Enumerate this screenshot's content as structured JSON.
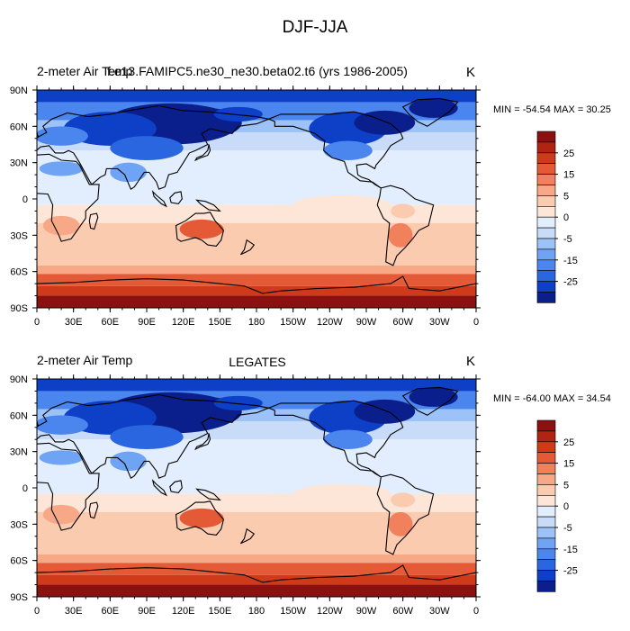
{
  "figure": {
    "title": "DJF-JJA"
  },
  "colors": {
    "levels": [
      "#0a1f8c",
      "#0d3fc7",
      "#2a66e0",
      "#4a86ee",
      "#6fa3f4",
      "#9dc2f8",
      "#c8dcfa",
      "#e2eefd",
      "#fde6d8",
      "#fbcbb0",
      "#f7a886",
      "#f1805c",
      "#e45a36",
      "#cf3a1b",
      "#b02412",
      "#8b1111"
    ],
    "land_outline": "#000000"
  },
  "chart_data": [
    {
      "type": "heatmap",
      "panel": "top",
      "title_left": "2-meter Air Temp",
      "title_center": "f.e13.FAMIPC5.ne30_ne30.beta02.t6 (yrs 1986-2005)",
      "units": "K",
      "min_max": "MIN = -54.54 MAX =  30.25",
      "min": -54.54,
      "max": 30.25,
      "x_ticks": [
        "0",
        "30E",
        "60E",
        "90E",
        "120E",
        "150E",
        "180",
        "150W",
        "120W",
        "90W",
        "60W",
        "30W",
        "0"
      ],
      "y_ticks": [
        "90N",
        "60N",
        "30N",
        "0",
        "30S",
        "60S",
        "90S"
      ],
      "colorbar_labels": [
        "25",
        "15",
        "5",
        "0",
        "-5",
        "-15",
        "-25"
      ]
    },
    {
      "type": "heatmap",
      "panel": "bottom",
      "title_left": "2-meter Air Temp",
      "title_center": "LEGATES",
      "units": "K",
      "min_max": "MIN = -64.00 MAX =  34.54",
      "min": -64.0,
      "max": 34.54,
      "x_ticks": [
        "0",
        "30E",
        "60E",
        "90E",
        "120E",
        "150E",
        "180",
        "150W",
        "120W",
        "90W",
        "60W",
        "30W",
        "0"
      ],
      "y_ticks": [
        "90N",
        "60N",
        "30N",
        "0",
        "30S",
        "60S",
        "90S"
      ],
      "colorbar_labels": [
        "25",
        "15",
        "5",
        "0",
        "-5",
        "-15",
        "-25"
      ]
    }
  ]
}
